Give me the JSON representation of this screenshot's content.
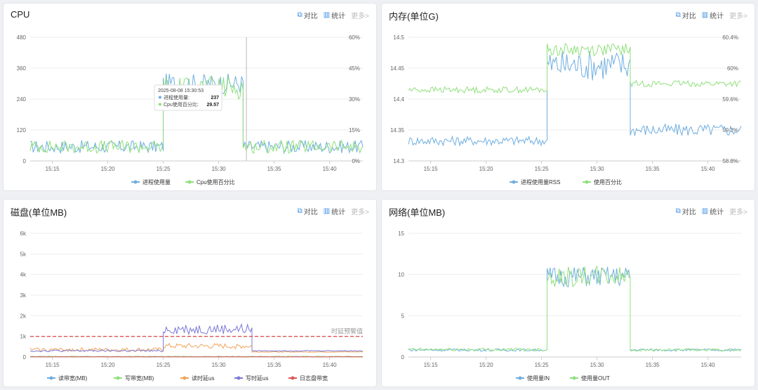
{
  "actions": {
    "compare": "对比",
    "stats": "统计",
    "more": "更多>"
  },
  "icons": {
    "compare": "compare-icon",
    "stats": "bar-chart-icon"
  },
  "colors": {
    "blue": "#6faee0",
    "green": "#8fe07a",
    "orange": "#f0a35a",
    "purple": "#7b79d8",
    "red": "#e05555",
    "grid": "#eeeeee",
    "axis": "#ccc"
  },
  "x_ticks": [
    "15:15",
    "15:20",
    "15:25",
    "15:30",
    "15:35",
    "15:40"
  ],
  "chart_data": [
    {
      "type": "line",
      "title": "CPU",
      "y_ticks": [
        "0",
        "120",
        "240",
        "360",
        "480"
      ],
      "y2_ticks": [
        "0%",
        "15%",
        "30%",
        "45%",
        "60%"
      ],
      "ylim": [
        0,
        480
      ],
      "y2lim": [
        0,
        60
      ],
      "series": [
        {
          "name": "进程使用量",
          "color": "#6faee0",
          "axis": "y",
          "segments": [
            [
              15.13,
              15.25,
              30,
              80
            ],
            [
              15.25,
              15.322,
              260,
              340
            ],
            [
              15.322,
              15.43,
              30,
              80
            ]
          ]
        },
        {
          "name": "Cpu使用百分比",
          "color": "#8fe07a",
          "axis": "y",
          "segments": [
            [
              15.13,
              15.25,
              30,
              80
            ],
            [
              15.25,
              15.322,
              240,
              330
            ],
            [
              15.322,
              15.43,
              30,
              80
            ]
          ]
        }
      ],
      "tooltip": {
        "time": "2025-08-08 15:30:53",
        "rows": [
          {
            "label": "进程使用量",
            "value": "237"
          },
          {
            "label": "Cpu使用百分比",
            "value": "29.57"
          }
        ]
      }
    },
    {
      "type": "line",
      "title": "内存(单位G)",
      "y_ticks": [
        "14.3",
        "14.35",
        "14.4",
        "14.45",
        "14.5"
      ],
      "y2_ticks": [
        "58.8%",
        "59.2%",
        "59.6%",
        "60%",
        "60.4%"
      ],
      "ylim": [
        14.3,
        14.5
      ],
      "y2lim": [
        58.8,
        60.4
      ],
      "series": [
        {
          "name": "进程使用量RSS",
          "color": "#6faee0",
          "axis": "y",
          "segments": [
            [
              15.13,
              15.255,
              14.325,
              14.34
            ],
            [
              15.255,
              15.33,
              14.43,
              14.48
            ],
            [
              15.33,
              15.43,
              14.34,
              14.36
            ]
          ]
        },
        {
          "name": "使用百分比",
          "color": "#8fe07a",
          "axis": "y",
          "segments": [
            [
              15.13,
              15.255,
              14.41,
              14.42
            ],
            [
              15.255,
              15.33,
              14.47,
              14.49
            ],
            [
              15.33,
              15.43,
              14.42,
              14.43
            ]
          ]
        }
      ]
    },
    {
      "type": "line",
      "title": "磁盘(单位MB)",
      "y_ticks": [
        "0",
        "1k",
        "2k",
        "3k",
        "4k",
        "5k",
        "6k"
      ],
      "ylim": [
        0,
        6000
      ],
      "threshold": {
        "value": 1000,
        "label": "时延预警值"
      },
      "series": [
        {
          "name": "读带宽(MB)",
          "color": "#6faee0",
          "axis": "y",
          "segments": [
            [
              15.13,
              15.43,
              0,
              30
            ]
          ]
        },
        {
          "name": "写带宽(MB)",
          "color": "#8fe07a",
          "axis": "y",
          "segments": [
            [
              15.13,
              15.43,
              0,
              40
            ]
          ]
        },
        {
          "name": "读时延us",
          "color": "#f0a35a",
          "axis": "y",
          "segments": [
            [
              15.13,
              15.25,
              250,
              450
            ],
            [
              15.25,
              15.33,
              400,
              650
            ],
            [
              15.33,
              15.43,
              230,
              260
            ]
          ]
        },
        {
          "name": "写时延us",
          "color": "#7b79d8",
          "axis": "y",
          "segments": [
            [
              15.13,
              15.25,
              250,
              350
            ],
            [
              15.25,
              15.33,
              1100,
              1600
            ],
            [
              15.33,
              15.43,
              280,
              320
            ]
          ]
        },
        {
          "name": "日志盘带宽",
          "color": "#e05555",
          "axis": "y",
          "segments": [
            [
              15.13,
              15.43,
              0,
              15
            ]
          ]
        }
      ]
    },
    {
      "type": "line",
      "title": "网络(单位MB)",
      "y_ticks": [
        "0",
        "5",
        "10",
        "15"
      ],
      "ylim": [
        0,
        15
      ],
      "series": [
        {
          "name": "使用量IN",
          "color": "#6faee0",
          "axis": "y",
          "segments": [
            [
              15.13,
              15.255,
              0.7,
              1.0
            ],
            [
              15.255,
              15.33,
              8.5,
              11
            ],
            [
              15.33,
              15.43,
              0.7,
              1.0
            ]
          ]
        },
        {
          "name": "使用量OUT",
          "color": "#8fe07a",
          "axis": "y",
          "segments": [
            [
              15.13,
              15.255,
              0.7,
              1.1
            ],
            [
              15.255,
              15.33,
              8.5,
              11
            ],
            [
              15.33,
              15.43,
              0.7,
              1.0
            ]
          ]
        }
      ]
    }
  ]
}
